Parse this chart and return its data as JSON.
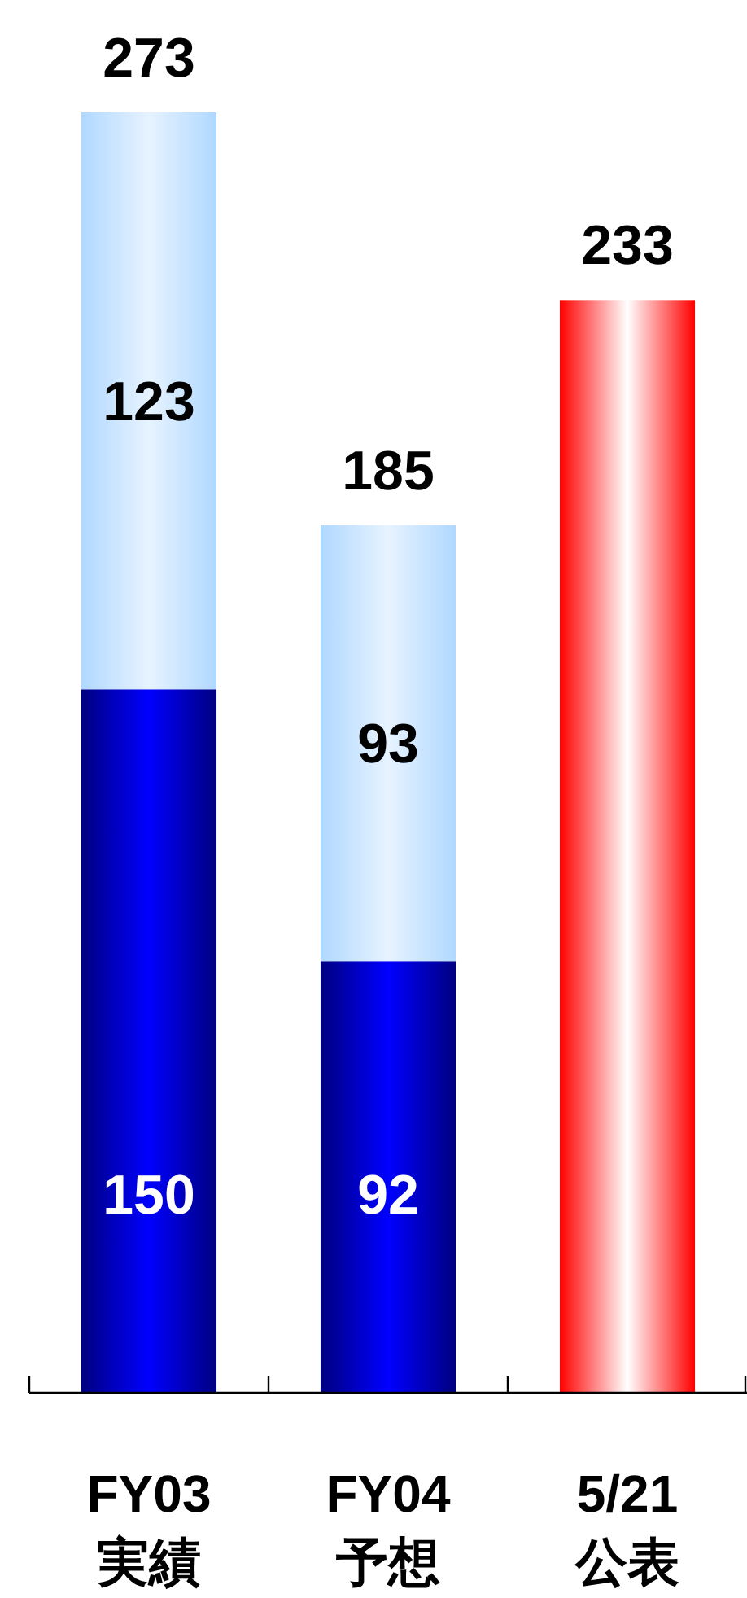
{
  "chart_data": {
    "type": "bar",
    "stacked": true,
    "categories": [
      "FY03\n実績",
      "FY04\n予想",
      "5/21\n公表"
    ],
    "series": [
      {
        "color": "#0000ff",
        "values": [
          150,
          92,
          null
        ],
        "value_labels": [
          "150",
          "92",
          null
        ]
      },
      {
        "color": "#b0d8ff",
        "values": [
          123,
          93,
          null
        ],
        "value_labels": [
          "123",
          "93",
          null
        ]
      },
      {
        "color": "#ff0000",
        "values": [
          null,
          null,
          233
        ],
        "value_labels": [
          null,
          null,
          null
        ]
      }
    ],
    "totals": [
      "273",
      "185",
      "233"
    ]
  }
}
